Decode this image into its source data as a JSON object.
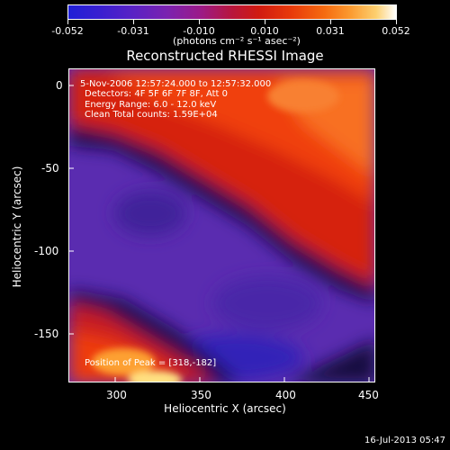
{
  "colorbar": {
    "tick_labels": [
      "-0.052",
      "-0.031",
      "-0.010",
      "0.010",
      "0.031",
      "0.052"
    ],
    "units": "(photons cm⁻² s⁻¹ asec⁻²)"
  },
  "image": {
    "title": "Reconstructed RHESSI Image",
    "info_lines": [
      "5-Nov-2006 12:57:24.000 to 12:57:32.000",
      "Detectors: 4F 5F 6F 7F 8F, Att 0",
      "Energy Range: 6.0 - 12.0 keV",
      "Clean    Total counts: 1.59E+04"
    ],
    "peak_label": "Position of Peak = [318,-182]",
    "xlabel": "Heliocentric X (arcsec)",
    "ylabel": "Heliocentric Y (arcsec)",
    "x_ticks": [
      "300",
      "350",
      "400",
      "450"
    ],
    "y_ticks": [
      "0",
      "-50",
      "-100",
      "-150"
    ]
  },
  "footer": {
    "timestamp": "16-Jul-2013 05:47"
  }
}
